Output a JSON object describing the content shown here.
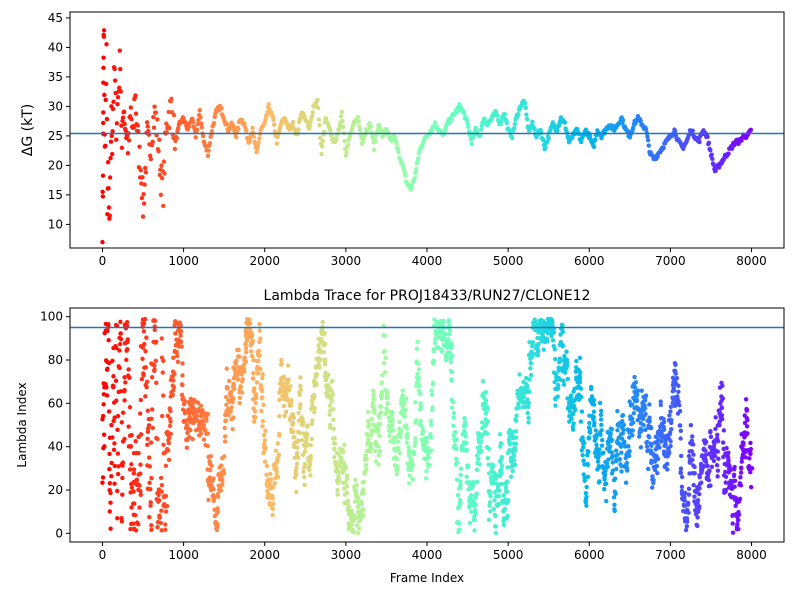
{
  "chart_data": [
    {
      "type": "scatter",
      "title": "",
      "xlabel": "",
      "ylabel": "ΔG (kT)",
      "xlim": [
        -400,
        8400
      ],
      "ylim": [
        6,
        46
      ],
      "xticks": [
        0,
        1000,
        2000,
        3000,
        4000,
        5000,
        6000,
        7000,
        8000
      ],
      "yticks": [
        10,
        15,
        20,
        25,
        30,
        35,
        40,
        45
      ],
      "hline": 25.4,
      "colormap": "rainbow (reversed with frame index)",
      "series": [
        {
          "points": [
            [
              0,
              10
            ],
            [
              5,
              16
            ],
            [
              8,
              24
            ],
            [
              10,
              30
            ],
            [
              12,
              35
            ],
            [
              15,
              41
            ],
            [
              20,
              41
            ],
            [
              25,
              26
            ],
            [
              30,
              22
            ],
            [
              40,
              30
            ],
            [
              50,
              38
            ],
            [
              60,
              14
            ],
            [
              70,
              18
            ],
            [
              80,
              12
            ],
            [
              90,
              9
            ],
            [
              100,
              22
            ],
            [
              110,
              28
            ],
            [
              120,
              24
            ],
            [
              130,
              30
            ],
            [
              150,
              36
            ],
            [
              170,
              27
            ],
            [
              200,
              33
            ],
            [
              220,
              39
            ],
            [
              240,
              22
            ],
            [
              260,
              31
            ],
            [
              280,
              27
            ],
            [
              300,
              25
            ],
            [
              320,
              23
            ],
            [
              350,
              29
            ],
            [
              380,
              24
            ],
            [
              400,
              33
            ],
            [
              420,
              28
            ],
            [
              450,
              22
            ],
            [
              480,
              19
            ],
            [
              500,
              13
            ],
            [
              520,
              17
            ],
            [
              550,
              25
            ],
            [
              580,
              22
            ],
            [
              620,
              27
            ],
            [
              650,
              29
            ],
            [
              700,
              22
            ],
            [
              720,
              18
            ],
            [
              750,
              16
            ],
            [
              780,
              25
            ],
            [
              800,
              28
            ],
            [
              850,
              30
            ],
            [
              900,
              24
            ],
            [
              950,
              27
            ],
            [
              1000,
              28
            ],
            [
              1050,
              26
            ],
            [
              1100,
              28
            ],
            [
              1150,
              25
            ],
            [
              1200,
              29
            ],
            [
              1250,
              24
            ],
            [
              1300,
              22
            ],
            [
              1350,
              26
            ],
            [
              1400,
              29
            ],
            [
              1450,
              30
            ],
            [
              1500,
              28
            ],
            [
              1550,
              26
            ],
            [
              1600,
              27
            ],
            [
              1650,
              25
            ],
            [
              1700,
              28
            ],
            [
              1750,
              27
            ],
            [
              1800,
              24
            ],
            [
              1850,
              26
            ],
            [
              1900,
              22
            ],
            [
              1950,
              26
            ],
            [
              2000,
              27
            ],
            [
              2050,
              30
            ],
            [
              2100,
              28
            ],
            [
              2150,
              24
            ],
            [
              2200,
              27
            ],
            [
              2250,
              28
            ],
            [
              2300,
              26
            ],
            [
              2350,
              27
            ],
            [
              2400,
              25
            ],
            [
              2450,
              29
            ],
            [
              2500,
              28
            ],
            [
              2550,
              26
            ],
            [
              2600,
              30
            ],
            [
              2650,
              31
            ],
            [
              2700,
              22
            ],
            [
              2750,
              28
            ],
            [
              2800,
              26
            ],
            [
              2850,
              24
            ],
            [
              2900,
              25
            ],
            [
              2950,
              29
            ],
            [
              3000,
              22
            ],
            [
              3050,
              25
            ],
            [
              3100,
              27
            ],
            [
              3150,
              28
            ],
            [
              3200,
              24
            ],
            [
              3250,
              26
            ],
            [
              3300,
              27
            ],
            [
              3350,
              23
            ],
            [
              3400,
              27
            ],
            [
              3450,
              25
            ],
            [
              3500,
              26
            ],
            [
              3550,
              24
            ],
            [
              3600,
              25
            ],
            [
              3650,
              22
            ],
            [
              3700,
              20
            ],
            [
              3750,
              17
            ],
            [
              3800,
              16
            ],
            [
              3850,
              18
            ],
            [
              3900,
              22
            ],
            [
              3950,
              24
            ],
            [
              4000,
              25
            ],
            [
              4050,
              26
            ],
            [
              4100,
              27
            ],
            [
              4150,
              26
            ],
            [
              4200,
              25
            ],
            [
              4250,
              27
            ],
            [
              4300,
              28
            ],
            [
              4350,
              29
            ],
            [
              4400,
              30
            ],
            [
              4450,
              29
            ],
            [
              4500,
              27
            ],
            [
              4550,
              24
            ],
            [
              4600,
              26
            ],
            [
              4650,
              25
            ],
            [
              4700,
              28
            ],
            [
              4750,
              27
            ],
            [
              4800,
              28
            ],
            [
              4850,
              29
            ],
            [
              4900,
              27
            ],
            [
              4950,
              29
            ],
            [
              5000,
              26
            ],
            [
              5050,
              25
            ],
            [
              5100,
              28
            ],
            [
              5150,
              30
            ],
            [
              5200,
              31
            ],
            [
              5250,
              26
            ],
            [
              5300,
              27
            ],
            [
              5350,
              25
            ],
            [
              5400,
              26
            ],
            [
              5450,
              23
            ],
            [
              5500,
              25
            ],
            [
              5550,
              27
            ],
            [
              5600,
              26
            ],
            [
              5650,
              28
            ],
            [
              5700,
              27
            ],
            [
              5750,
              24
            ],
            [
              5800,
              25
            ],
            [
              5850,
              26
            ],
            [
              5900,
              24
            ],
            [
              5950,
              26
            ],
            [
              6000,
              25
            ],
            [
              6050,
              23
            ],
            [
              6100,
              26
            ],
            [
              6150,
              25
            ],
            [
              6200,
              26
            ],
            [
              6250,
              27
            ],
            [
              6300,
              26
            ],
            [
              6350,
              27
            ],
            [
              6400,
              28
            ],
            [
              6450,
              26
            ],
            [
              6500,
              25
            ],
            [
              6550,
              27
            ],
            [
              6600,
              28
            ],
            [
              6650,
              27
            ],
            [
              6700,
              26
            ],
            [
              6750,
              22
            ],
            [
              6800,
              21
            ],
            [
              6850,
              22
            ],
            [
              6900,
              23
            ],
            [
              6950,
              24
            ],
            [
              7000,
              25
            ],
            [
              7050,
              26
            ],
            [
              7100,
              24
            ],
            [
              7150,
              23
            ],
            [
              7200,
              24
            ],
            [
              7250,
              26
            ],
            [
              7300,
              25
            ],
            [
              7350,
              24
            ],
            [
              7400,
              26
            ],
            [
              7450,
              25
            ],
            [
              7500,
              22
            ],
            [
              7550,
              19
            ],
            [
              7600,
              20
            ],
            [
              7650,
              21
            ],
            [
              7700,
              22
            ],
            [
              7750,
              23
            ],
            [
              7800,
              24
            ],
            [
              7850,
              24
            ],
            [
              7900,
              25
            ],
            [
              7950,
              25
            ],
            [
              8000,
              26
            ]
          ]
        }
      ]
    },
    {
      "type": "scatter",
      "title": "Lambda Trace for PROJ18433/RUN27/CLONE12",
      "xlabel": "Frame Index",
      "ylabel": "Lambda Index",
      "xlim": [
        -400,
        8400
      ],
      "ylim": [
        -4,
        104
      ],
      "xticks": [
        0,
        1000,
        2000,
        3000,
        4000,
        5000,
        6000,
        7000,
        8000
      ],
      "yticks": [
        0,
        20,
        40,
        60,
        80,
        100
      ],
      "hline": 95,
      "colormap": "rainbow (reversed with frame index)",
      "description": "Dense scatter of lambda index (0–99) versus frame index (0–8000), forming many vertical bands spanning the full 0–99 range."
    }
  ]
}
